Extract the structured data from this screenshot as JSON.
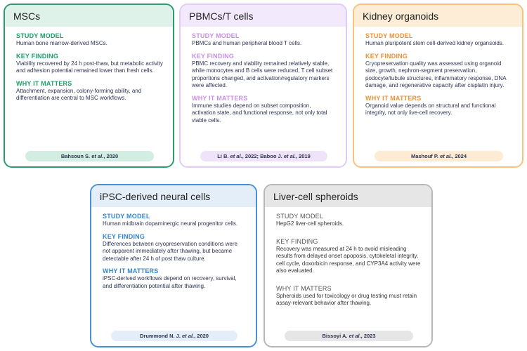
{
  "cards": [
    {
      "title": "MSCs",
      "sections": [
        {
          "heading": "STUDY MODEL",
          "text": "Human bone marrow-derived MSCs."
        },
        {
          "heading": "KEY FINDING",
          "text": "Viability recovered by 24 h post-thaw, but metabolic activity and adhesion potential remained lower than fresh cells."
        },
        {
          "heading": "WHY IT MATTERS",
          "text": "Attachment, expansion, colony-forming ability, and differentiation are central to MSC workflows."
        }
      ],
      "citation": [
        "Bahsoun S. ",
        "et al.",
        ", 2020"
      ]
    },
    {
      "title": "PBMCs/T cells",
      "sections": [
        {
          "heading": "STUDY MODEL",
          "text": "PBMCs and human peripheral blood T cells."
        },
        {
          "heading": "KEY FINDING",
          "text": "PBMC recovery and viability remained relatively stable, while monocytes and B cells were reduced, T cell subset proportions changed, and activation/regulatory markers were affected."
        },
        {
          "heading": "WHY IT MATTERS",
          "text": "Immune studies depend on subset composition, activation state, and functional response, not only total viable cells."
        }
      ],
      "citation": [
        "Li B. ",
        "et al.",
        ", 2022; Baboo J. ",
        "et al.",
        ", 2019"
      ]
    },
    {
      "title": "Kidney organoids",
      "sections": [
        {
          "heading": "STUDY MODEL",
          "text": "Human pluripotent stem cell-derived kidney organsoids."
        },
        {
          "heading": "KEY FINDING",
          "text": "Cryopreservation quality was assessed using organoid size, growth, nephron-segment preservation, podocyte/tubule structures, inflammatory response, DNA damage, and regenerative capacity after cisplatin injury."
        },
        {
          "heading": "WHY IT MATTERS",
          "text": "Organoid value depends on structural and functional integrity, not only live-cell recovery."
        }
      ],
      "citation": [
        "Mashouf P. ",
        "et al.",
        ", 2024"
      ]
    },
    {
      "title": "iPSC-derived neural cells",
      "sections": [
        {
          "heading": "STUDY MODEL",
          "text": "Human midbrain dopaminergic neural progenitor cells."
        },
        {
          "heading": "KEY FINDING",
          "text": "Differences between cryopreservation conditions were not apparent immediately after thawing, but became detectable after 24 h of post thaw culture."
        },
        {
          "heading": "WHY IT MATTERS",
          "text": "iPSC-derived workflows depend on recovery, survival, and differentiation potential after thawing."
        }
      ],
      "citation": [
        "Drummond N. J. ",
        "et al.",
        ", 2020"
      ]
    },
    {
      "title": "Liver-cell spheroids",
      "sections": [
        {
          "heading": "STUDY MODEL",
          "text": "HepG2 liver-cell spheroids."
        },
        {
          "heading": "KEY FINDING",
          "text": "Recovery was measured at 24 h to avoid misleading results from delayed onset apoposis, cytokeletal integrity, cell cycle, doxorbicin response, and CYP3A4 activity were also evaluated."
        },
        {
          "heading": "WHY IT MATTERS",
          "text": "Spheroids used for toxicology or drug testing must retain assay-relevant behavior after thawing."
        }
      ],
      "citation": [
        "Bissoyi A. ",
        "et al.",
        ", 2023"
      ]
    }
  ]
}
